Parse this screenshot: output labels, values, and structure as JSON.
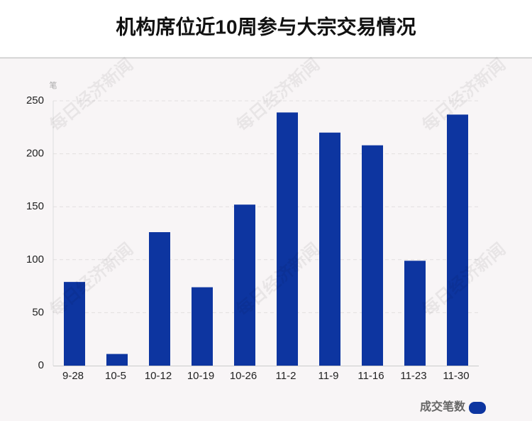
{
  "chart_data": {
    "type": "bar",
    "title": "机构席位近10周参与大宗交易情况",
    "y_label": "笔",
    "categories": [
      "9-28",
      "10-5",
      "10-12",
      "10-19",
      "10-26",
      "11-2",
      "11-9",
      "11-16",
      "11-23",
      "11-30"
    ],
    "series": [
      {
        "name": "成交笔数",
        "color": "#0d35a0",
        "values": [
          79,
          11,
          126,
          74,
          152,
          239,
          220,
          208,
          99,
          237
        ]
      }
    ],
    "ylim": [
      0,
      250
    ],
    "yticks": [
      0,
      50,
      100,
      150,
      200,
      250
    ],
    "grid": true,
    "legend": "bottom-right",
    "watermark": "每日经济新闻"
  }
}
